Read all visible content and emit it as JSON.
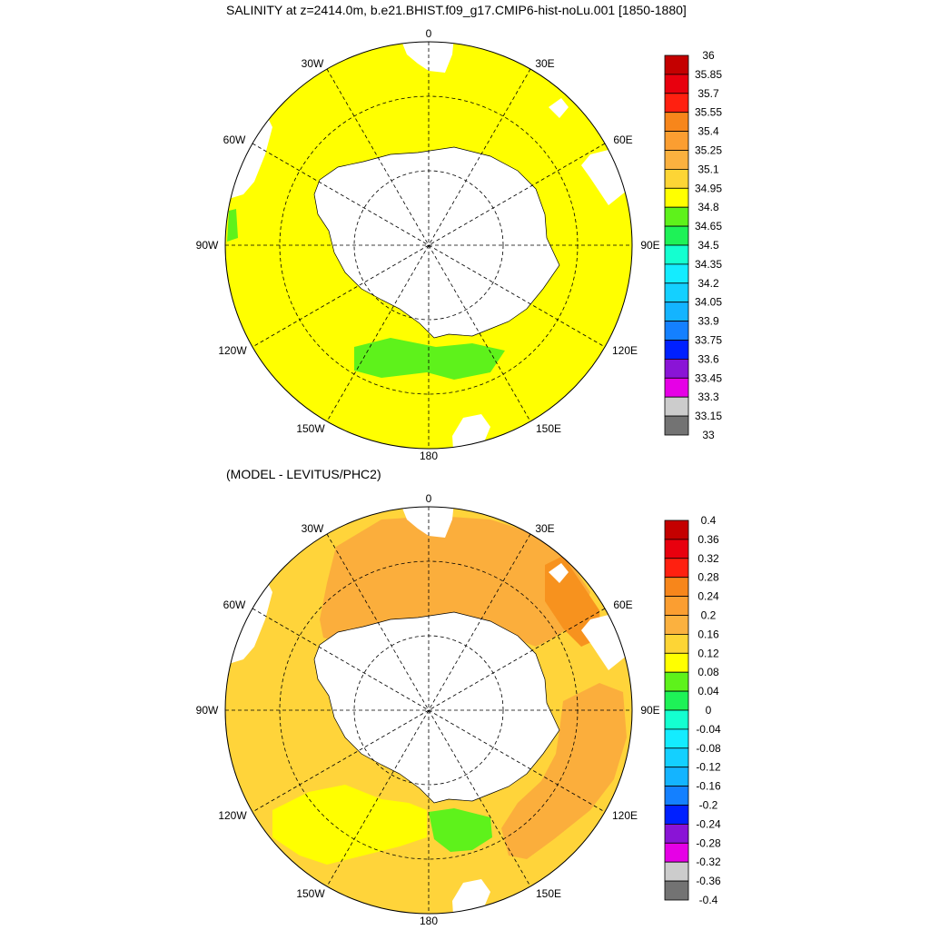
{
  "titles": {
    "main": "SALINITY at z=2414.0m, b.e21.BHIST.f09_g17.CMIP6-hist-noLu.001 [1850-1880]",
    "sub": "(MODEL - LEVITUS/PHC2)"
  },
  "lon_labels": {
    "n": "0",
    "e30": "30E",
    "e60": "60E",
    "e90": "90E",
    "e120": "120E",
    "e150": "150E",
    "s": "180",
    "w150": "150W",
    "w120": "120W",
    "w90": "90W",
    "w60": "60W",
    "w30": "30W"
  },
  "colors": {
    "land": "#ffffff",
    "top_field": "#ffff00",
    "top_anomaly_patch": "#5ef21b",
    "bottom_mid": "#ffd43a",
    "bottom_high": "#fbae3c",
    "bottom_highest": "#f7921e",
    "bottom_green": "#5ef21b",
    "bottom_lightyellow": "#ffff00"
  },
  "colorbars": [
    {
      "labels": [
        "36",
        "35.85",
        "35.7",
        "35.55",
        "35.4",
        "35.25",
        "35.1",
        "34.95",
        "34.8",
        "34.65",
        "34.5",
        "34.35",
        "34.2",
        "34.05",
        "33.9",
        "33.75",
        "33.6",
        "33.45",
        "33.3",
        "33.15",
        "33"
      ],
      "colors": [
        "#c40000",
        "#e8000e",
        "#ff2010",
        "#f7861b",
        "#fb9e31",
        "#fbb13f",
        "#fdd535",
        "#ffff00",
        "#5ef21b",
        "#1ef257",
        "#14ffd0",
        "#14ecff",
        "#14d0ff",
        "#14b4ff",
        "#1480ff",
        "#0020ff",
        "#8a14d6",
        "#e600e6",
        "#cccccc",
        "#737373"
      ]
    },
    {
      "labels": [
        "0.4",
        "0.36",
        "0.32",
        "0.28",
        "0.24",
        "0.2",
        "0.16",
        "0.12",
        "0.08",
        "0.04",
        "0",
        "-0.04",
        "-0.08",
        "-0.12",
        "-0.16",
        "-0.2",
        "-0.24",
        "-0.28",
        "-0.32",
        "-0.36",
        "-0.4"
      ],
      "colors": [
        "#c40000",
        "#e8000e",
        "#ff2010",
        "#f7861b",
        "#fb9e31",
        "#fbb13f",
        "#fdd535",
        "#ffff00",
        "#5ef21b",
        "#1ef257",
        "#14ffd0",
        "#14ecff",
        "#14d0ff",
        "#14b4ff",
        "#1480ff",
        "#0020ff",
        "#8a14d6",
        "#e600e6",
        "#cccccc",
        "#737373"
      ]
    }
  ]
}
